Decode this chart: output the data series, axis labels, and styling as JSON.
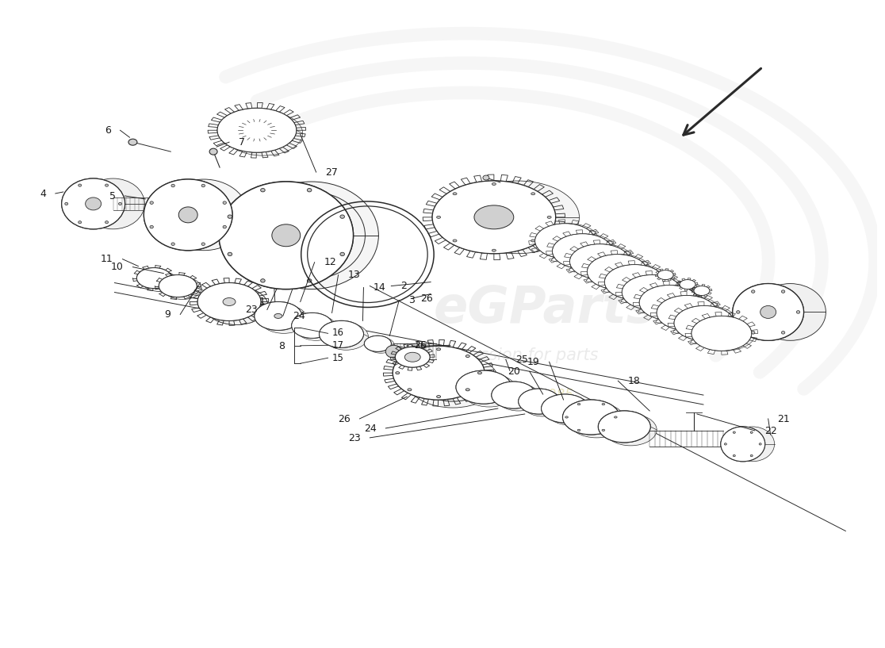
{
  "background_color": "#ffffff",
  "fig_width": 11.0,
  "fig_height": 8.0,
  "line_color": "#2a2a2a",
  "label_color": "#1a1a1a",
  "label_fontsize": 9,
  "wm_color1": "#c8c8c8",
  "wm_color2": "#d0c890",
  "arrow_color": "#1a1a1a",
  "note": "All positions in data coords 0-11 x 0-8, isometric exploded differential diagram"
}
